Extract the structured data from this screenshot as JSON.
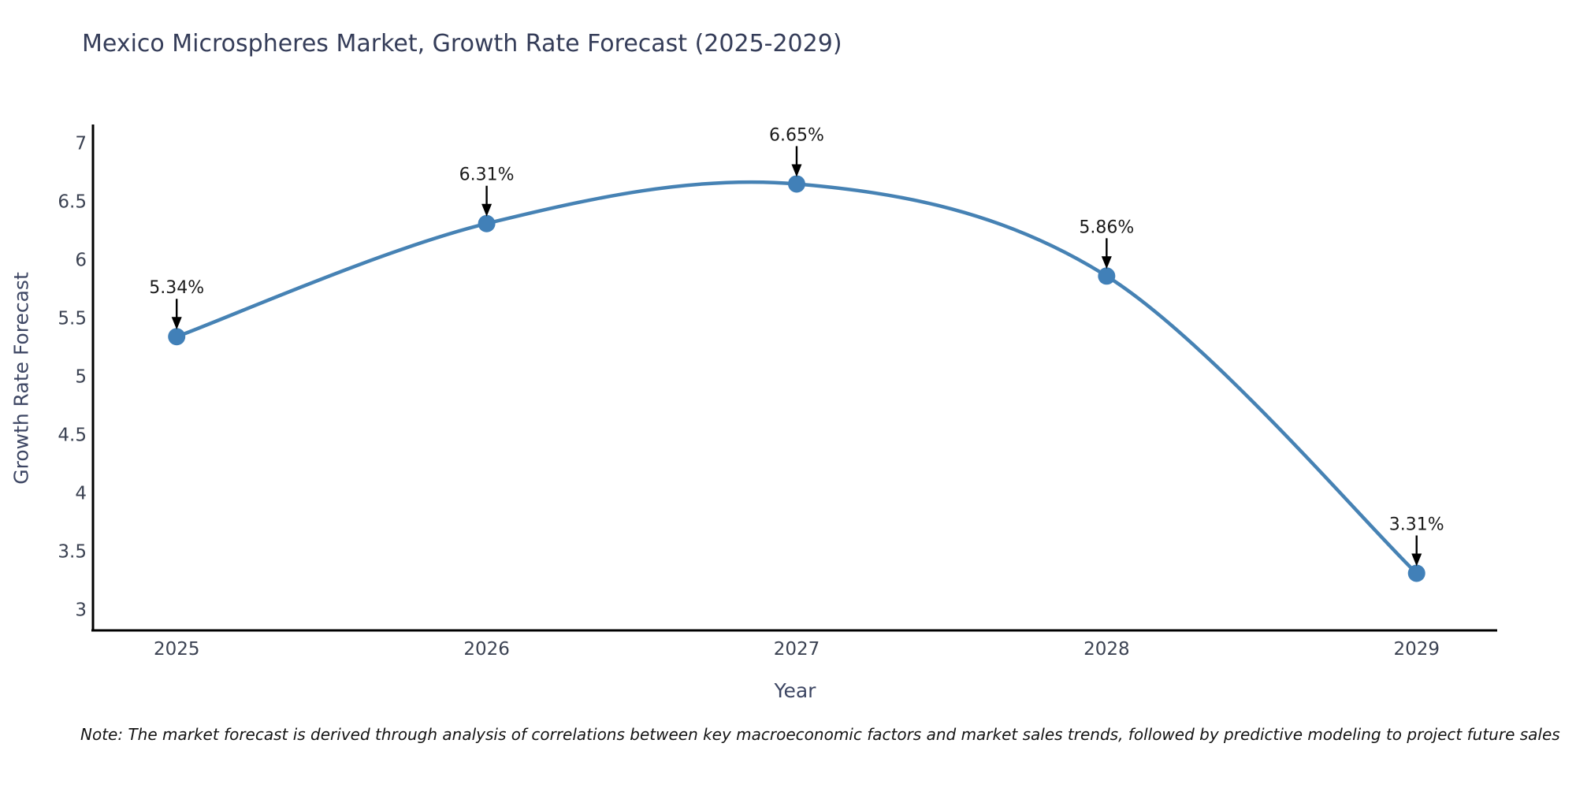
{
  "note": "Note: The market forecast is derived through analysis of correlations between key macroeconomic factors and market sales trends, followed by predictive modeling to project future sales",
  "chart_data": {
    "type": "line",
    "title": "Mexico Microspheres Market, Growth Rate Forecast (2025-2029)",
    "xlabel": "Year",
    "ylabel": "Growth Rate Forecast",
    "x": [
      2025,
      2026,
      2027,
      2028,
      2029
    ],
    "values": [
      5.34,
      6.31,
      6.65,
      5.86,
      3.31
    ],
    "point_labels": [
      "5.34%",
      "6.31%",
      "6.65%",
      "5.86%",
      "3.31%"
    ],
    "xticks": [
      "2025",
      "2026",
      "2027",
      "2028",
      "2029"
    ],
    "yticks": [
      3,
      3.5,
      4,
      4.5,
      5,
      5.5,
      6,
      6.5,
      7
    ],
    "xlim": [
      2024.73,
      2029.26
    ],
    "ylim": [
      2.82,
      7.16
    ],
    "grid": false,
    "legend": false,
    "smooth": true,
    "colors": {
      "line": "#4682b4",
      "marker": "#4180b8",
      "annotation_text": "#1a1a1a",
      "annotation_arrow": "#000000",
      "axis": "#000000",
      "tick_label": "#3b4252",
      "background": "#ffffff"
    }
  }
}
